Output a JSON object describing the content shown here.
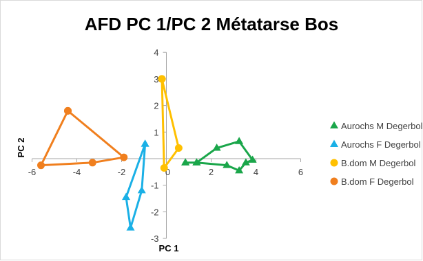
{
  "chart_data": {
    "type": "scatter",
    "title": "AFD PC 1/PC 2 Métatarse Bos",
    "xlabel": "PC 1",
    "ylabel": "PC 2",
    "xlim": [
      -6,
      6
    ],
    "ylim": [
      -3,
      4
    ],
    "xticks": [
      -6,
      -4,
      -2,
      0,
      2,
      4,
      6
    ],
    "yticks": [
      -3,
      -2,
      -1,
      0,
      1,
      2,
      3,
      4
    ],
    "grid": false,
    "legend_position": "right",
    "series": [
      {
        "name": "Aurochs M Degerbol",
        "marker": "triangle",
        "color": "#1aa64a",
        "connected": true,
        "points": [
          [
            0.85,
            -0.15
          ],
          [
            1.35,
            -0.15
          ],
          [
            2.25,
            0.4
          ],
          [
            3.25,
            0.65
          ],
          [
            3.85,
            -0.05
          ],
          [
            3.55,
            -0.15
          ],
          [
            3.25,
            -0.45
          ],
          [
            2.7,
            -0.25
          ],
          [
            1.35,
            -0.15
          ],
          [
            0.85,
            -0.15
          ]
        ]
      },
      {
        "name": "Aurochs F Degerbol",
        "marker": "triangle",
        "color": "#1ab0e6",
        "connected": true,
        "points": [
          [
            -0.95,
            0.55
          ],
          [
            -1.1,
            -1.2
          ],
          [
            -1.6,
            -2.6
          ],
          [
            -1.8,
            -1.45
          ],
          [
            -0.95,
            0.55
          ]
        ]
      },
      {
        "name": "B.dom M Degerbol",
        "marker": "circle",
        "color": "#ffc000",
        "connected": true,
        "points": [
          [
            -0.2,
            3
          ],
          [
            0.55,
            0.4
          ],
          [
            -0.1,
            -0.35
          ],
          [
            -0.2,
            3
          ]
        ]
      },
      {
        "name": "B.dom F Degerbol",
        "marker": "circle",
        "color": "#f07f1e",
        "connected": true,
        "points": [
          [
            -4.4,
            1.8
          ],
          [
            -1.9,
            0.05
          ],
          [
            -3.3,
            -0.15
          ],
          [
            -5.6,
            -0.25
          ],
          [
            -4.4,
            1.8
          ]
        ]
      }
    ]
  }
}
